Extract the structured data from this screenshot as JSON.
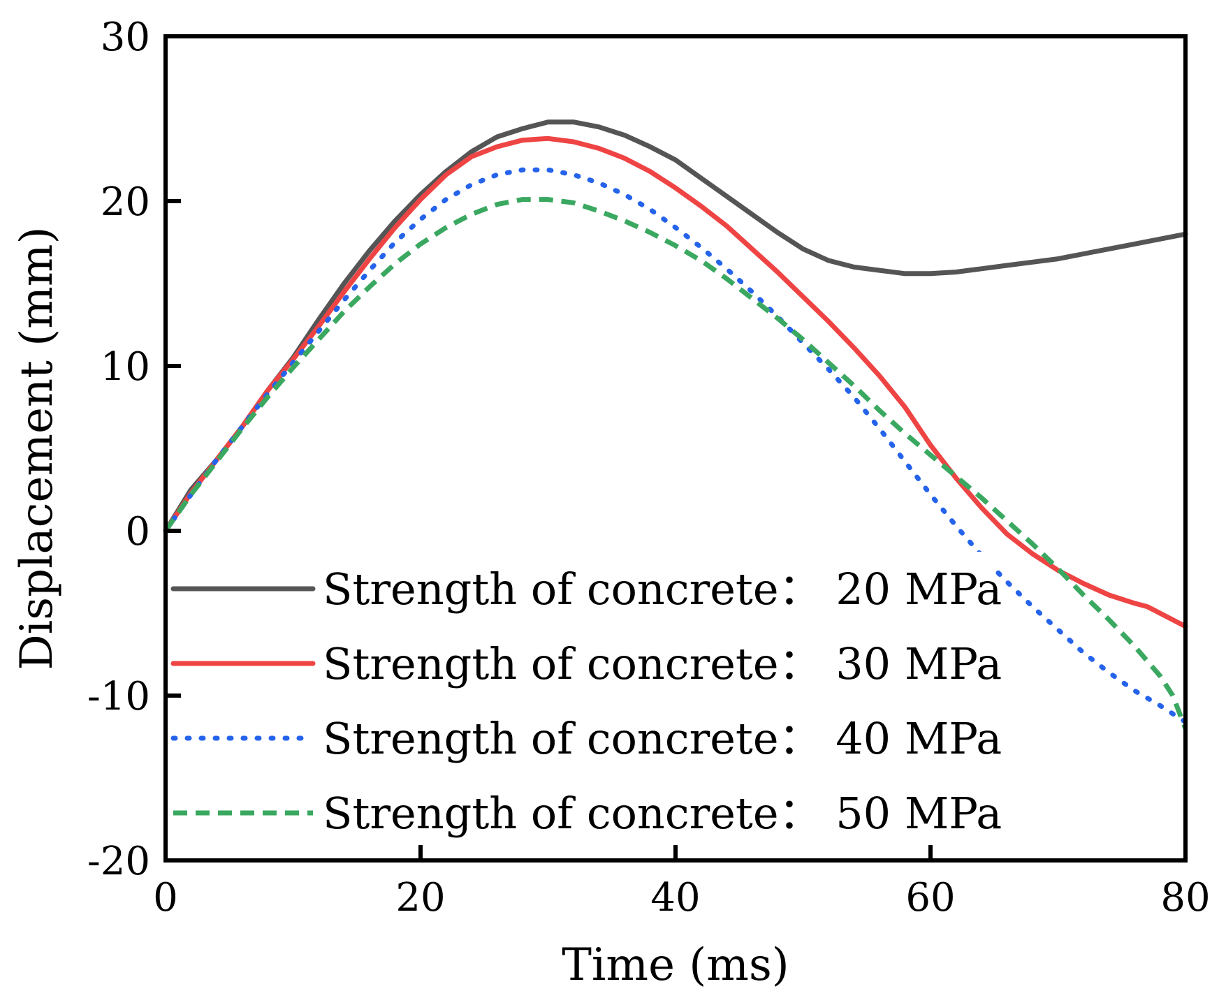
{
  "chart_data": {
    "type": "line",
    "title": "",
    "xlabel": "Time (ms)",
    "ylabel": "Displacement (mm)",
    "xlim": [
      0,
      80
    ],
    "ylim": [
      -20,
      30
    ],
    "xticks": [
      0,
      20,
      40,
      60,
      80
    ],
    "yticks": [
      -20,
      -10,
      0,
      10,
      20,
      30
    ],
    "xtick_labels": [
      "0",
      "20",
      "40",
      "60",
      "80"
    ],
    "ytick_labels": [
      "-20",
      "-10",
      "0",
      "10",
      "20",
      "30"
    ],
    "grid": false,
    "legend_position": "lower-left",
    "series": [
      {
        "name": "Strength of concrete： 20 MPa",
        "color": "#555555",
        "style": "solid",
        "points": [
          [
            0,
            0
          ],
          [
            2,
            2.5
          ],
          [
            4,
            4.3
          ],
          [
            6,
            6.3
          ],
          [
            8,
            8.5
          ],
          [
            10,
            10.5
          ],
          [
            12,
            12.8
          ],
          [
            14,
            15.0
          ],
          [
            16,
            17.0
          ],
          [
            18,
            18.8
          ],
          [
            20,
            20.4
          ],
          [
            22,
            21.8
          ],
          [
            24,
            23.0
          ],
          [
            26,
            23.9
          ],
          [
            28,
            24.4
          ],
          [
            30,
            24.8
          ],
          [
            32,
            24.8
          ],
          [
            34,
            24.5
          ],
          [
            36,
            24.0
          ],
          [
            38,
            23.3
          ],
          [
            40,
            22.5
          ],
          [
            42,
            21.4
          ],
          [
            44,
            20.3
          ],
          [
            46,
            19.2
          ],
          [
            48,
            18.1
          ],
          [
            50,
            17.1
          ],
          [
            52,
            16.4
          ],
          [
            54,
            16.0
          ],
          [
            56,
            15.8
          ],
          [
            58,
            15.6
          ],
          [
            60,
            15.6
          ],
          [
            62,
            15.7
          ],
          [
            64,
            15.9
          ],
          [
            66,
            16.1
          ],
          [
            68,
            16.3
          ],
          [
            70,
            16.5
          ],
          [
            72,
            16.8
          ],
          [
            74,
            17.1
          ],
          [
            76,
            17.4
          ],
          [
            78,
            17.7
          ],
          [
            80,
            18.0
          ]
        ]
      },
      {
        "name": "Strength of concrete： 30 MPa",
        "color": "#ef4444",
        "style": "solid",
        "points": [
          [
            0,
            0
          ],
          [
            2,
            2.3
          ],
          [
            4,
            4.3
          ],
          [
            6,
            6.3
          ],
          [
            8,
            8.5
          ],
          [
            10,
            10.4
          ],
          [
            12,
            12.4
          ],
          [
            14,
            14.5
          ],
          [
            16,
            16.5
          ],
          [
            18,
            18.4
          ],
          [
            20,
            20.1
          ],
          [
            22,
            21.6
          ],
          [
            24,
            22.7
          ],
          [
            26,
            23.3
          ],
          [
            28,
            23.7
          ],
          [
            30,
            23.8
          ],
          [
            32,
            23.6
          ],
          [
            34,
            23.2
          ],
          [
            36,
            22.6
          ],
          [
            38,
            21.8
          ],
          [
            40,
            20.8
          ],
          [
            42,
            19.7
          ],
          [
            44,
            18.5
          ],
          [
            46,
            17.1
          ],
          [
            48,
            15.7
          ],
          [
            50,
            14.2
          ],
          [
            52,
            12.7
          ],
          [
            54,
            11.1
          ],
          [
            56,
            9.4
          ],
          [
            58,
            7.5
          ],
          [
            60,
            5.2
          ],
          [
            62,
            3.2
          ],
          [
            64,
            1.4
          ],
          [
            66,
            -0.2
          ],
          [
            68,
            -1.4
          ],
          [
            70,
            -2.4
          ],
          [
            72,
            -3.2
          ],
          [
            74,
            -3.9
          ],
          [
            76,
            -4.4
          ],
          [
            77,
            -4.6
          ],
          [
            78,
            -5.0
          ],
          [
            80,
            -5.8
          ]
        ]
      },
      {
        "name": "Strength of concrete： 40 MPa",
        "color": "#2563eb",
        "style": "dotted",
        "points": [
          [
            0,
            0
          ],
          [
            2,
            2.2
          ],
          [
            4,
            4.3
          ],
          [
            6,
            6.3
          ],
          [
            8,
            8.3
          ],
          [
            10,
            10.2
          ],
          [
            12,
            12.1
          ],
          [
            14,
            14.0
          ],
          [
            16,
            15.8
          ],
          [
            18,
            17.5
          ],
          [
            20,
            18.9
          ],
          [
            22,
            20.1
          ],
          [
            24,
            21.0
          ],
          [
            26,
            21.6
          ],
          [
            28,
            21.9
          ],
          [
            30,
            21.9
          ],
          [
            32,
            21.6
          ],
          [
            34,
            21.1
          ],
          [
            36,
            20.4
          ],
          [
            38,
            19.5
          ],
          [
            40,
            18.4
          ],
          [
            42,
            17.2
          ],
          [
            44,
            15.9
          ],
          [
            46,
            14.5
          ],
          [
            48,
            13.0
          ],
          [
            50,
            11.4
          ],
          [
            52,
            9.8
          ],
          [
            54,
            8.1
          ],
          [
            56,
            6.2
          ],
          [
            58,
            4.2
          ],
          [
            60,
            2.2
          ],
          [
            62,
            0.3
          ],
          [
            64,
            -1.5
          ],
          [
            66,
            -3.1
          ],
          [
            68,
            -4.6
          ],
          [
            70,
            -6.0
          ],
          [
            72,
            -7.4
          ],
          [
            74,
            -8.6
          ],
          [
            76,
            -9.7
          ],
          [
            78,
            -10.6
          ],
          [
            80,
            -11.6
          ]
        ]
      },
      {
        "name": "Strength of concrete： 50 MPa",
        "color": "#3aa860",
        "style": "dashed",
        "points": [
          [
            0,
            0
          ],
          [
            2,
            2.2
          ],
          [
            4,
            4.2
          ],
          [
            6,
            6.2
          ],
          [
            8,
            8.1
          ],
          [
            10,
            9.9
          ],
          [
            12,
            11.6
          ],
          [
            14,
            13.3
          ],
          [
            16,
            14.8
          ],
          [
            18,
            16.2
          ],
          [
            20,
            17.4
          ],
          [
            22,
            18.4
          ],
          [
            24,
            19.2
          ],
          [
            26,
            19.8
          ],
          [
            28,
            20.1
          ],
          [
            30,
            20.1
          ],
          [
            32,
            19.9
          ],
          [
            34,
            19.4
          ],
          [
            36,
            18.8
          ],
          [
            38,
            18.1
          ],
          [
            40,
            17.3
          ],
          [
            42,
            16.4
          ],
          [
            44,
            15.3
          ],
          [
            46,
            14.1
          ],
          [
            48,
            12.9
          ],
          [
            50,
            11.6
          ],
          [
            52,
            10.2
          ],
          [
            54,
            8.8
          ],
          [
            56,
            7.3
          ],
          [
            58,
            5.9
          ],
          [
            60,
            4.6
          ],
          [
            62,
            3.3
          ],
          [
            64,
            2.0
          ],
          [
            66,
            0.6
          ],
          [
            68,
            -0.8
          ],
          [
            70,
            -2.3
          ],
          [
            72,
            -3.9
          ],
          [
            74,
            -5.4
          ],
          [
            76,
            -7.0
          ],
          [
            78,
            -8.8
          ],
          [
            79,
            -10.0
          ],
          [
            80,
            -12.0
          ]
        ]
      }
    ]
  }
}
